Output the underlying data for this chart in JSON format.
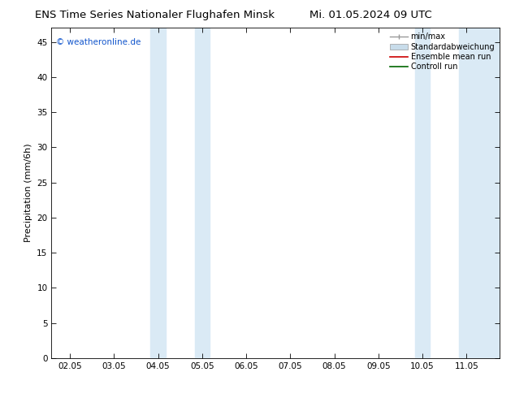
{
  "title_left": "ENS Time Series Nationaler Flughafen Minsk",
  "title_right": "Mi. 01.05.2024 09 UTC",
  "ylabel": "Precipitation (mm/6h)",
  "copyright": "© weatheronline.de",
  "ylim": [
    0,
    47
  ],
  "yticks": [
    0,
    5,
    10,
    15,
    20,
    25,
    30,
    35,
    40,
    45
  ],
  "xtick_labels": [
    "02.05",
    "03.05",
    "04.05",
    "05.05",
    "06.05",
    "07.05",
    "08.05",
    "09.05",
    "10.05",
    "11.05"
  ],
  "xtick_positions": [
    0,
    1,
    2,
    3,
    4,
    5,
    6,
    7,
    8,
    9
  ],
  "xlim": [
    -0.42,
    9.75
  ],
  "shade_bands": [
    [
      1.83,
      2.17
    ],
    [
      2.83,
      3.17
    ],
    [
      7.83,
      8.17
    ],
    [
      8.83,
      9.75
    ]
  ],
  "shade_color": "#daeaf5",
  "background_color": "#ffffff",
  "plot_bg_color": "#ffffff",
  "legend_items": [
    {
      "label": "min/max",
      "color": "#999999",
      "lw": 1.0,
      "type": "minmax"
    },
    {
      "label": "Standardabweichung",
      "color": "#c8dcea",
      "lw": 8,
      "type": "fill"
    },
    {
      "label": "Ensemble mean run",
      "color": "#cc0000",
      "lw": 1.2,
      "type": "line"
    },
    {
      "label": "Controll run",
      "color": "#006600",
      "lw": 1.2,
      "type": "line"
    }
  ],
  "title_fontsize": 9.5,
  "axis_fontsize": 8,
  "tick_fontsize": 7.5,
  "copyright_fontsize": 7.5,
  "copyright_color": "#1155cc"
}
